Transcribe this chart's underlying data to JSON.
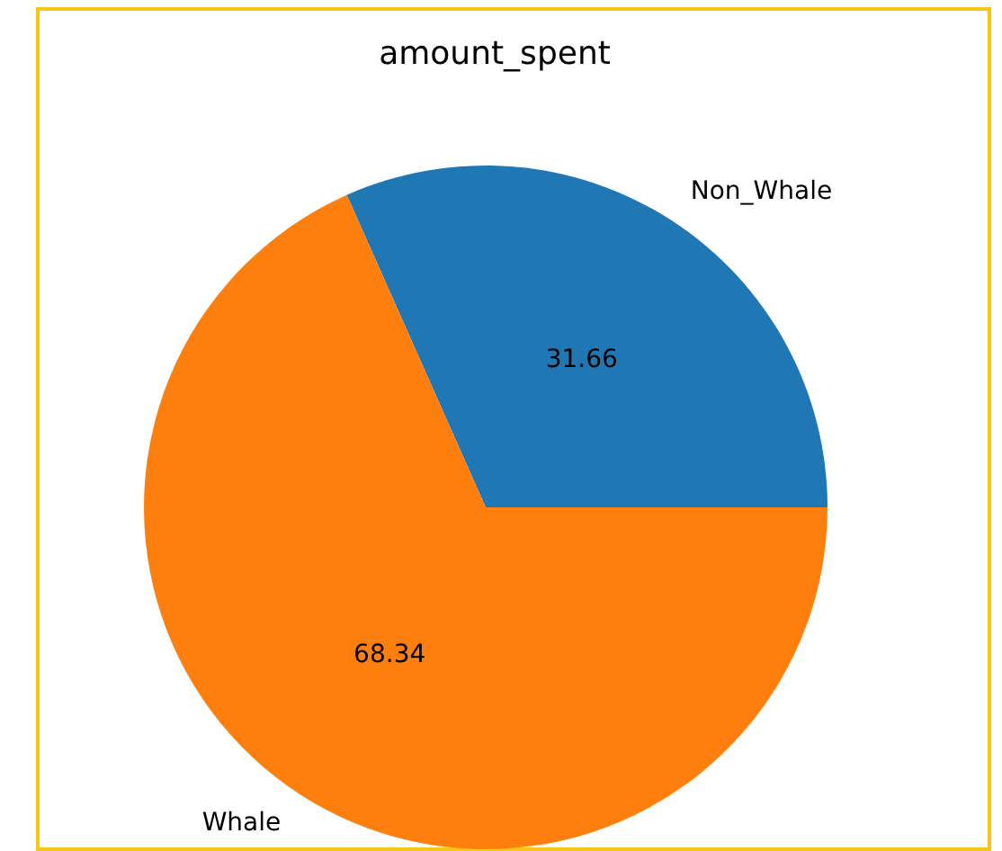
{
  "chart_data": {
    "type": "pie",
    "title": "amount_spent",
    "categories": [
      "Non_Whale",
      "Whale"
    ],
    "values": [
      31.66,
      68.34
    ],
    "colors": [
      "#1f77b4",
      "#ff7f0e"
    ],
    "data_labels": true
  }
}
